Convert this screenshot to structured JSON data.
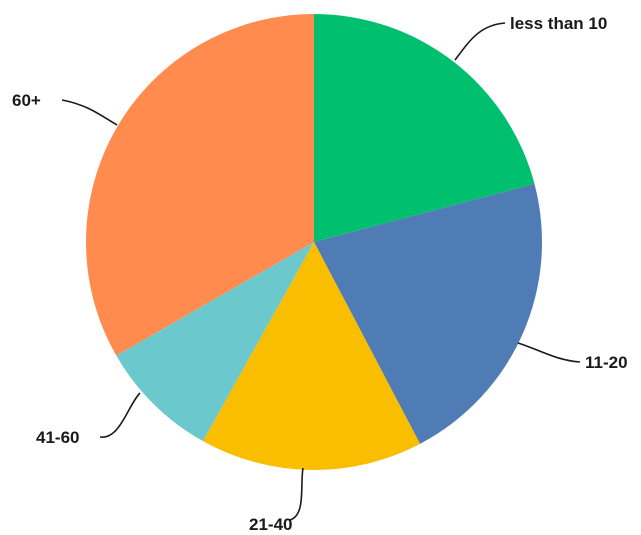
{
  "chart_data": {
    "type": "pie",
    "title": "",
    "slices": [
      {
        "label": "less than 10",
        "value": 20.9,
        "color": "#00BF6F"
      },
      {
        "label": "11-20",
        "value": 21.4,
        "color": "#507CB6"
      },
      {
        "label": "21-40",
        "value": 15.8,
        "color": "#F9BE00"
      },
      {
        "label": "41-60",
        "value": 8.6,
        "color": "#6BC8CD"
      },
      {
        "label": "60+",
        "value": 33.3,
        "color": "#FF8B4F"
      }
    ],
    "start": "12 o'clock",
    "direction": "clockwise",
    "legend": "none"
  }
}
